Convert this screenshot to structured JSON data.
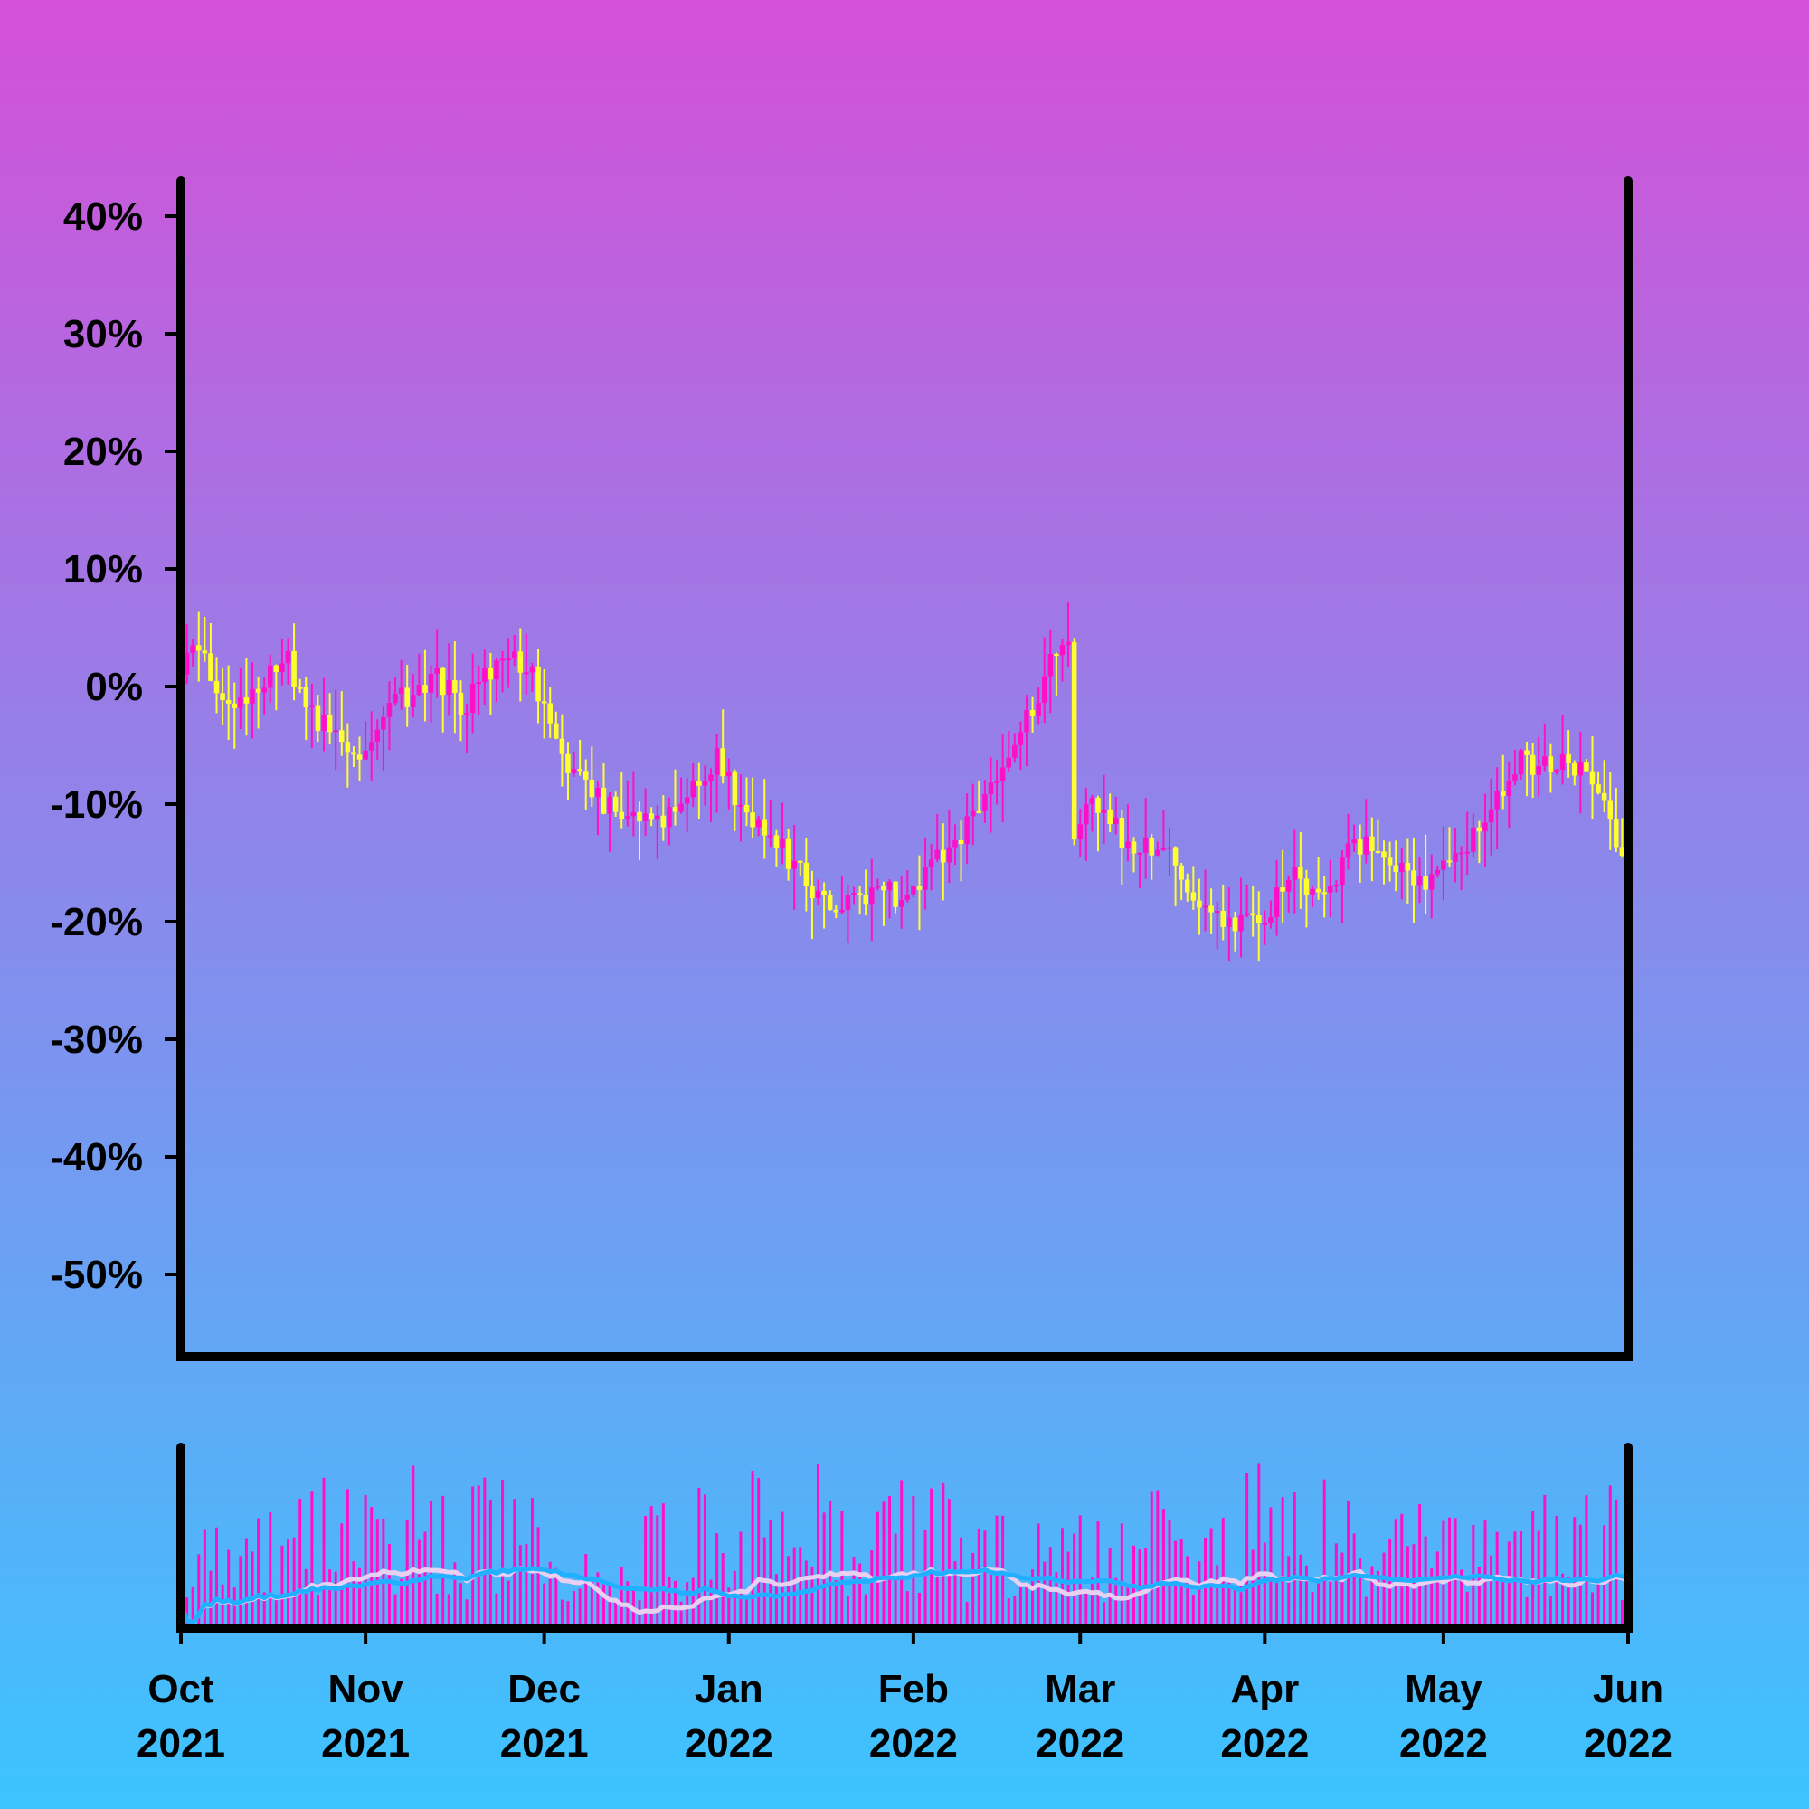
{
  "colors": {
    "background_top": "#d450d8",
    "background_bottom": "#3cc4ff",
    "axis": "#000000",
    "candle_up": "#ff10c8",
    "candle_down": "#ffff30",
    "volume_bar": "#ff10c8",
    "volume_ma_fast": "#e8d0f0",
    "volume_ma_slow": "#20b0ff"
  },
  "chart_data": {
    "type": "candlestick",
    "title": "",
    "xlabel": "",
    "ylabel": "",
    "x_range": [
      "2021-10-01",
      "2022-06-01"
    ],
    "ylim": [
      -57,
      43
    ],
    "y_ticks": [
      40,
      30,
      20,
      10,
      0,
      -10,
      -20,
      -30,
      -40,
      -50
    ],
    "y_tick_labels": [
      "40%",
      "30%",
      "20%",
      "10%",
      "0%",
      "-10%",
      "-20%",
      "-30%",
      "-40%",
      "-50%"
    ],
    "x_ticks": [
      {
        "date": "2021-10-01",
        "month": "Oct",
        "year": "2021"
      },
      {
        "date": "2021-11-01",
        "month": "Nov",
        "year": "2021"
      },
      {
        "date": "2021-12-01",
        "month": "Dec",
        "year": "2021"
      },
      {
        "date": "2022-01-01",
        "month": "Jan",
        "year": "2022"
      },
      {
        "date": "2022-02-01",
        "month": "Feb",
        "year": "2022"
      },
      {
        "date": "2022-03-01",
        "month": "Mar",
        "year": "2022"
      },
      {
        "date": "2022-04-01",
        "month": "Apr",
        "year": "2022"
      },
      {
        "date": "2022-05-01",
        "month": "May",
        "year": "2022"
      },
      {
        "date": "2022-06-01",
        "month": "Jun",
        "year": "2022"
      }
    ],
    "close_trend": [
      {
        "date": "2021-10-01",
        "value": 2
      },
      {
        "date": "2021-10-04",
        "value": 4
      },
      {
        "date": "2021-10-08",
        "value": -2
      },
      {
        "date": "2021-10-13",
        "value": -1
      },
      {
        "date": "2021-10-18",
        "value": 3
      },
      {
        "date": "2021-10-24",
        "value": -3
      },
      {
        "date": "2021-10-30",
        "value": -6
      },
      {
        "date": "2021-11-05",
        "value": -2
      },
      {
        "date": "2021-11-10",
        "value": 0
      },
      {
        "date": "2021-11-13",
        "value": 1
      },
      {
        "date": "2021-11-17",
        "value": -2
      },
      {
        "date": "2021-11-24",
        "value": 3
      },
      {
        "date": "2021-11-28",
        "value": 2
      },
      {
        "date": "2021-12-04",
        "value": -6
      },
      {
        "date": "2021-12-08",
        "value": -9
      },
      {
        "date": "2021-12-14",
        "value": -11
      },
      {
        "date": "2021-12-20",
        "value": -12
      },
      {
        "date": "2021-12-26",
        "value": -8
      },
      {
        "date": "2021-12-30",
        "value": -6
      },
      {
        "date": "2022-01-05",
        "value": -12
      },
      {
        "date": "2022-01-10",
        "value": -14
      },
      {
        "date": "2022-01-16",
        "value": -18
      },
      {
        "date": "2022-01-20",
        "value": -19
      },
      {
        "date": "2022-01-26",
        "value": -17
      },
      {
        "date": "2022-01-30",
        "value": -18
      },
      {
        "date": "2022-02-04",
        "value": -15
      },
      {
        "date": "2022-02-10",
        "value": -12
      },
      {
        "date": "2022-02-15",
        "value": -8
      },
      {
        "date": "2022-02-20",
        "value": -3
      },
      {
        "date": "2022-02-24",
        "value": 2
      },
      {
        "date": "2022-02-27",
        "value": 3
      },
      {
        "date": "2022-02-28",
        "value": -12
      },
      {
        "date": "2022-03-04",
        "value": -10
      },
      {
        "date": "2022-03-10",
        "value": -14
      },
      {
        "date": "2022-03-15",
        "value": -13
      },
      {
        "date": "2022-03-20",
        "value": -19
      },
      {
        "date": "2022-03-26",
        "value": -20
      },
      {
        "date": "2022-03-31",
        "value": -20
      },
      {
        "date": "2022-04-06",
        "value": -16
      },
      {
        "date": "2022-04-11",
        "value": -18
      },
      {
        "date": "2022-04-16",
        "value": -13
      },
      {
        "date": "2022-04-22",
        "value": -15
      },
      {
        "date": "2022-04-28",
        "value": -17
      },
      {
        "date": "2022-05-04",
        "value": -14
      },
      {
        "date": "2022-05-10",
        "value": -9
      },
      {
        "date": "2022-05-14",
        "value": -6
      },
      {
        "date": "2022-05-18",
        "value": -7
      },
      {
        "date": "2022-05-22",
        "value": -6
      },
      {
        "date": "2022-05-26",
        "value": -8
      },
      {
        "date": "2022-06-01",
        "value": -15
      }
    ],
    "volume_panel": {
      "y_labels": "none",
      "moving_averages": [
        "fast",
        "slow"
      ]
    }
  }
}
